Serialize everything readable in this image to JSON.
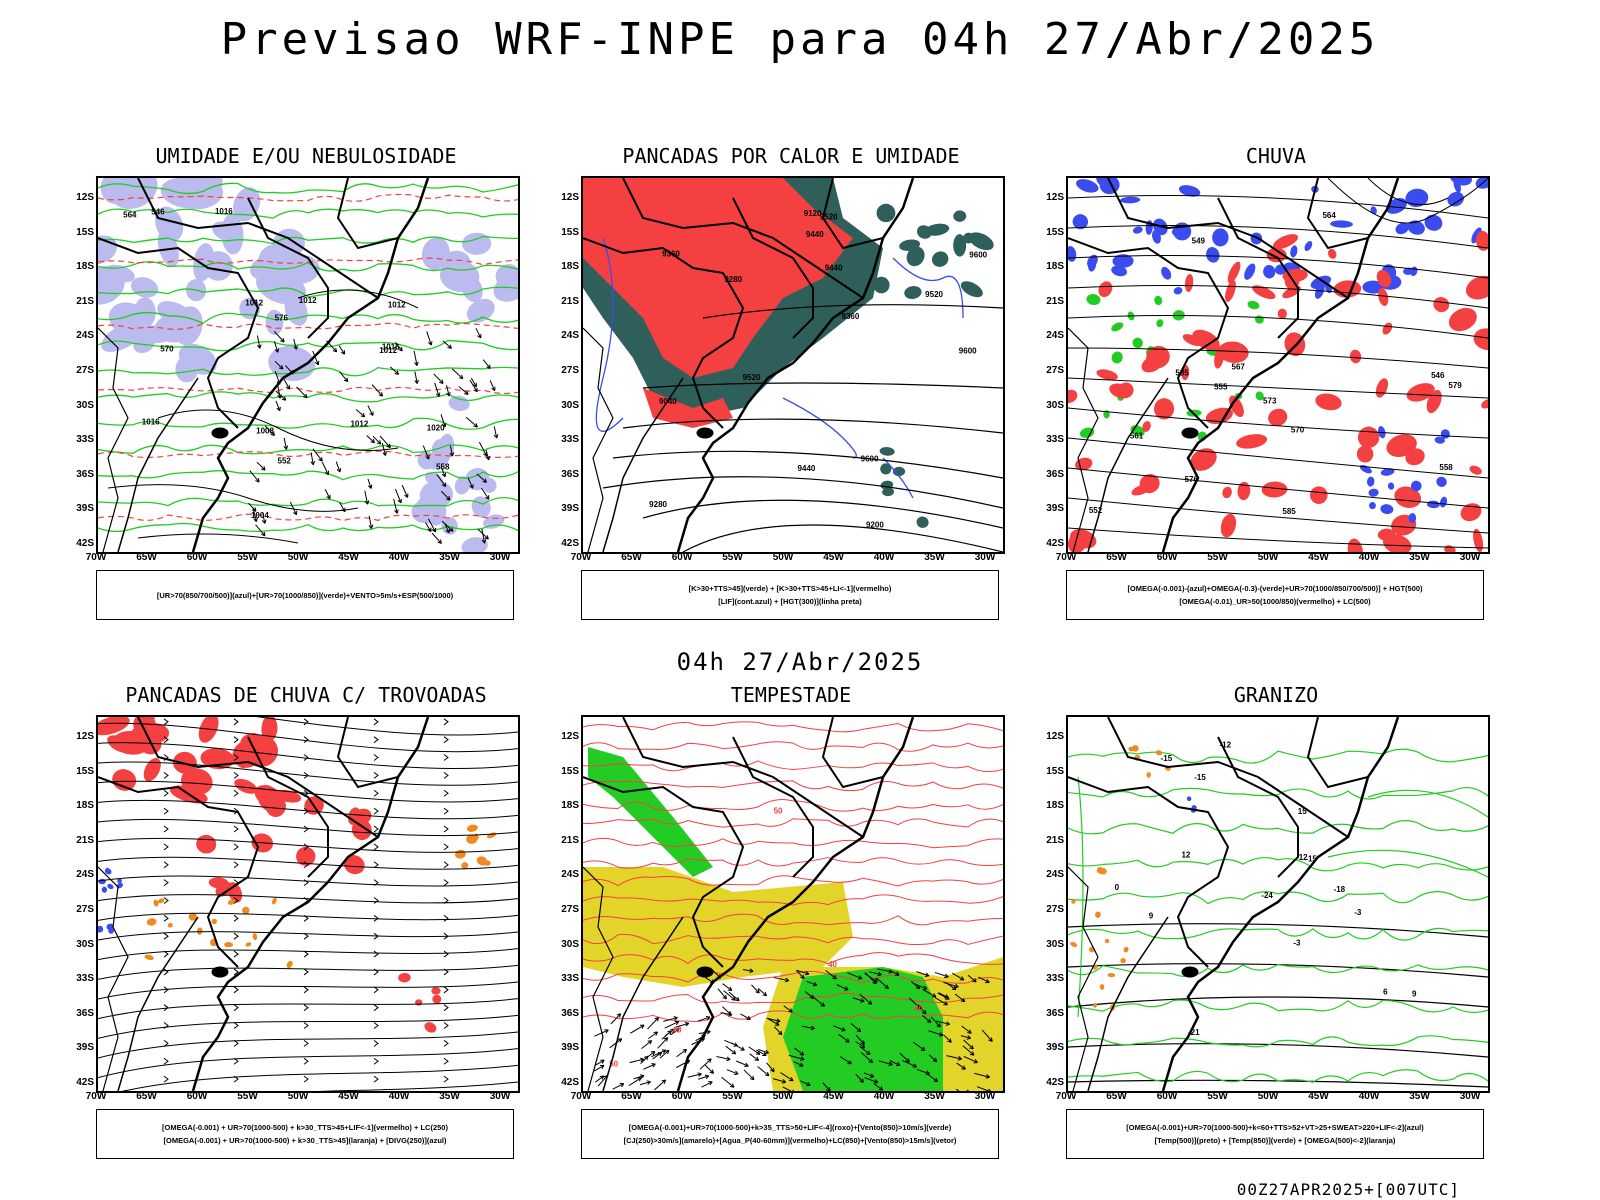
{
  "title": "Previsao WRF-INPE  para 04h 27/Abr/2025",
  "mid_title": "04h 27/Abr/2025",
  "footer_stamp": "00Z27APR2025+[007UTC]",
  "lat_labels": [
    "12S",
    "15S",
    "18S",
    "21S",
    "24S",
    "27S",
    "30S",
    "33S",
    "36S",
    "39S",
    "42S"
  ],
  "lon_labels": [
    "70W",
    "65W",
    "60W",
    "55W",
    "50W",
    "45W",
    "40W",
    "35W",
    "30W"
  ],
  "colors": {
    "red": "#f44040",
    "blue": "#3a4cf0",
    "green": "#22cc22",
    "lavender": "#b4b4ee",
    "teal": "#2f5f5a",
    "yellow": "#e3d42a",
    "orange": "#f08a20"
  },
  "panels": [
    {
      "id": "umidade",
      "title": "UMIDADE E/OU NEBULOSIDADE",
      "legend": [
        "[UR>70(850/700/500)](azul)+[UR>70(1000/850)](verde)+VENTO>5m/s+ESP(500/1000)"
      ],
      "contour_labels": [
        "1012",
        "1012",
        "1012",
        "1012",
        "1016",
        "1016",
        "1016",
        "1020",
        "1012",
        "1004",
        "1008",
        "576",
        "570",
        "564",
        "552",
        "558",
        "546"
      ]
    },
    {
      "id": "pancadas-calor",
      "title": "PANCADAS POR CALOR E UMIDADE",
      "legend": [
        "[K>30+TTS>45](verde) + [K>30+TTS>45+LI<-1](vermelho)",
        "[LIF](cont.azul) + [HGT(300)](linha preta)"
      ],
      "contour_labels": [
        "9600",
        "9600",
        "9600",
        "9520",
        "9520",
        "9440",
        "9440",
        "9360",
        "9360",
        "9280",
        "9280",
        "9200",
        "9120",
        "9040",
        "9520",
        "9440"
      ]
    },
    {
      "id": "chuva",
      "title": "CHUVA",
      "legend": [
        "[OMEGA(-0.001)-(azul)+OMEGA(-0.3)-(verde)+UR>70(1000/850/700/500)] + HGT(500)",
        "[OMEGA(-0.01)_UR>50(1000/850)(vermelho) + LC(500)"
      ],
      "contour_labels": [
        "585",
        "585",
        "579",
        "576",
        "573",
        "570",
        "567",
        "564",
        "561",
        "558",
        "555",
        "552",
        "549",
        "546"
      ]
    },
    {
      "id": "pancadas-trovoadas",
      "title": "PANCADAS DE CHUVA C/ TROVOADAS",
      "legend": [
        "[OMEGA(-0.001) + UR>70(1000-500) + k>30_TTS>45+LIF<-1](vermelho) + LC(250)",
        "[OMEGA(-0.001) + UR>70(1000-500) + k>30_TTS>45](laranja) + [DIVG(250)](azul)"
      ],
      "contour_labels": []
    },
    {
      "id": "tempestade",
      "title": "TEMPESTADE",
      "legend": [
        "[OMEGA(-0.001)+UR>70(1000-500)+k>35_TTS>50+LIF<-4](roxo)+[Vento(850)>10m/s](verde)",
        "[CJ(250)>30m/s](amarelo)+[Agua_P(40-60mm)](vermelho)+LC(850)+[Vento(850)>15m/s](vetor)"
      ],
      "contour_labels": [
        "40",
        "50",
        "50",
        "40",
        "40"
      ]
    },
    {
      "id": "granizo",
      "title": "GRANIZO",
      "legend": [
        "[OMEGA(-0.001)+UR>70(1000-500)+k<60+TTS>52+VT>25+SWEAT>220+LIF<-2](azul)",
        "[Temp(500)](preto) + [Temp(850)](verde) + [OMEGA(500)<-2](laranja)"
      ],
      "contour_labels": [
        "-15",
        "-12",
        "-18",
        "-21",
        "-24",
        "-15",
        "-12",
        "-15",
        "-3",
        "9",
        "12",
        "15",
        "9",
        "6",
        "0",
        "-3"
      ]
    }
  ]
}
